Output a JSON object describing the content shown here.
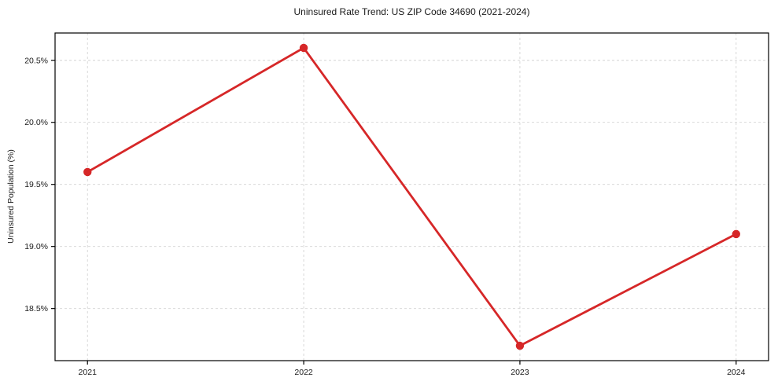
{
  "chart_data": {
    "type": "line",
    "title": "Uninsured Rate Trend: US ZIP Code 34690 (2021-2024)",
    "xlabel": "",
    "ylabel": "Uninsured Population (%)",
    "x": [
      2021,
      2022,
      2023,
      2024
    ],
    "y": [
      19.6,
      20.6,
      18.2,
      19.1
    ],
    "xticks": [
      {
        "value": 2021,
        "label": "2021"
      },
      {
        "value": 2022,
        "label": "2022"
      },
      {
        "value": 2023,
        "label": "2023"
      },
      {
        "value": 2024,
        "label": "2024"
      }
    ],
    "yticks": [
      {
        "value": 18.5,
        "label": "18.5%"
      },
      {
        "value": 19.0,
        "label": "19.0%"
      },
      {
        "value": 19.5,
        "label": "19.5%"
      },
      {
        "value": 20.0,
        "label": "20.0%"
      },
      {
        "value": 20.5,
        "label": "20.5%"
      }
    ],
    "xlim": [
      2020.85,
      2024.15
    ],
    "ylim": [
      18.08,
      20.72
    ],
    "grid": true,
    "legend": "none",
    "line_color": "#d62728",
    "grid_color": "#d4d4d4",
    "axis_color": "#000000",
    "text_color": "#1a1a1a",
    "marker": "circle"
  }
}
